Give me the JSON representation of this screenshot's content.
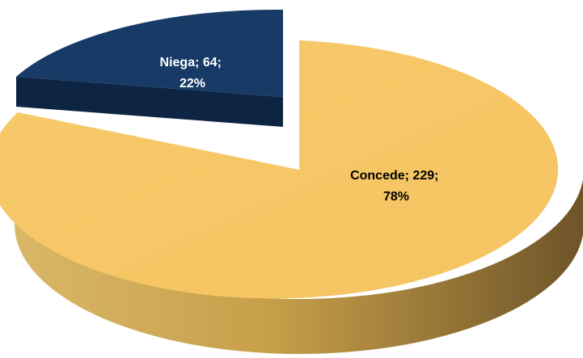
{
  "chart_data": {
    "type": "pie",
    "style": "3d-exploded",
    "title": "",
    "slices": [
      {
        "label": "Concede",
        "value": 229,
        "percent": 78,
        "color": "#f7c867",
        "side_dark": "#7e6130",
        "side_light": "#d8b25c",
        "label_color": "#000000",
        "text_line1": "Concede; 229;",
        "text_line2": "78%"
      },
      {
        "label": "Niega",
        "value": 64,
        "percent": 22,
        "color": "#173a66",
        "side_dark": "#0a1d36",
        "side_light": "#15345e",
        "label_color": "#ffffff",
        "text_line1": "Niega; 64;",
        "text_line2": "22%"
      }
    ],
    "legend": "none"
  }
}
